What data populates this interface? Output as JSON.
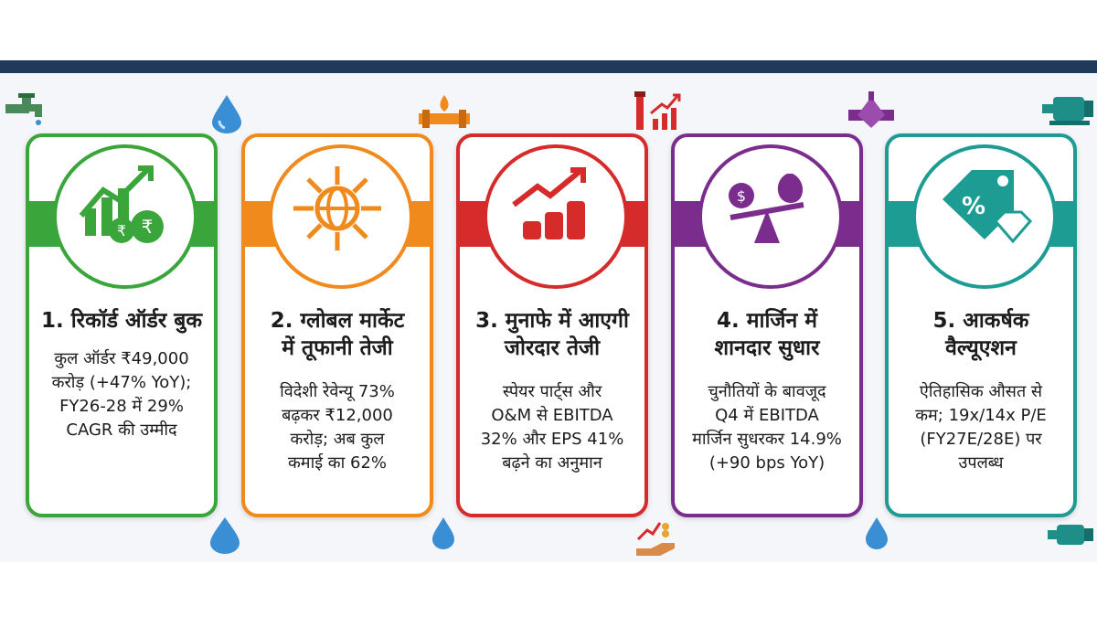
{
  "colors": {
    "topbar": "#1f3a5a",
    "green": "#3aa53a",
    "orange": "#f08a1c",
    "red": "#d62b2b",
    "purple": "#7b2d8e",
    "teal": "#1d9c93"
  },
  "cards": [
    {
      "color": "#3aa53a",
      "icon": "growth-chart-rupee-coins-icon",
      "title_lines": [
        "1. रिकॉर्ड ऑर्डर बुक"
      ],
      "body_lines": [
        "कुल ऑर्डर ₹49,000",
        "करोड़ (+47% YoY);",
        "FY26-28 में 29%",
        "CAGR की उम्मीद"
      ]
    },
    {
      "color": "#f08a1c",
      "icon": "globe-arrows-icon",
      "title_lines": [
        "2. ग्लोबल मार्केट",
        "में तूफानी तेजी"
      ],
      "body_lines": [
        "विदेशी रेवेन्यू 73%",
        "बढ़कर ₹12,000",
        "करोड़; अब कुल",
        "कमाई का 62%"
      ]
    },
    {
      "color": "#d62b2b",
      "icon": "profit-coins-arrow-icon",
      "title_lines": [
        "3. मुनाफे में आएगी",
        "जोरदार तेजी"
      ],
      "body_lines": [
        "स्पेयर पार्ट्स और",
        "O&M से EBITDA",
        "32% और EPS 41%",
        "बढ़ने का अनुमान"
      ]
    },
    {
      "color": "#7b2d8e",
      "icon": "balance-scale-money-icon",
      "title_lines": [
        "4. मार्जिन में",
        "शानदार सुधार"
      ],
      "body_lines": [
        "चुनौतियों के बावजूद",
        "Q4 में EBITDA",
        "मार्जिन सुधरकर 14.9%",
        "(+90 bps YoY)"
      ]
    },
    {
      "color": "#1d9c93",
      "icon": "discount-tag-diamond-icon",
      "title_lines": [
        "5. आकर्षक",
        "वैल्यूएशन"
      ],
      "body_lines": [
        "ऐतिहासिक औसत से",
        "कम; 19x/14x P/E",
        "(FY27E/28E) पर",
        "उपलब्ध"
      ]
    }
  ],
  "decorations": [
    "water-tap-icon",
    "water-drop-icon",
    "pipe-flame-icon",
    "pipe-growth-chart-icon",
    "valve-icon",
    "pump-motor-icon",
    "water-drop-icon",
    "hand-coins-chart-icon",
    "pump-motor-icon"
  ]
}
